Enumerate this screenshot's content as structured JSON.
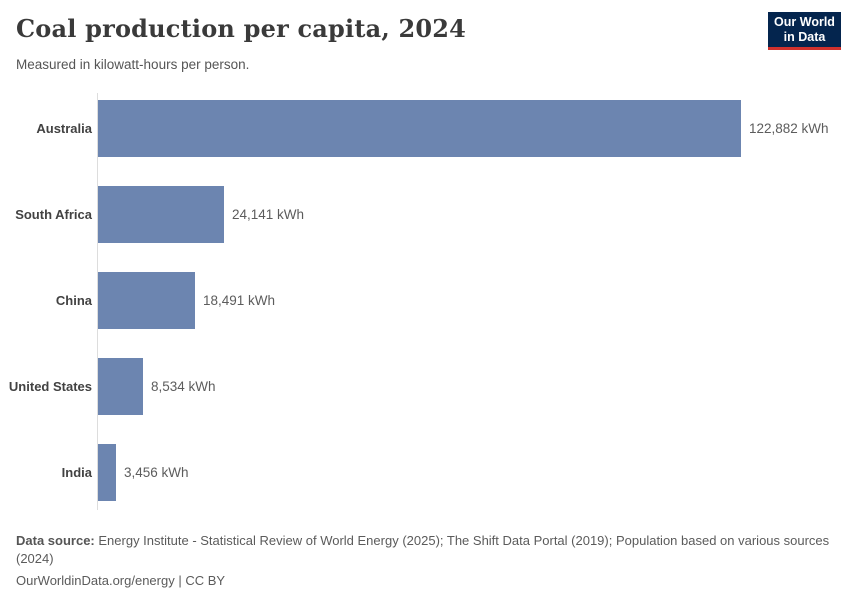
{
  "header": {
    "title": "Coal production per capita, 2024",
    "subtitle": "Measured in kilowatt-hours per person.",
    "logo": {
      "line1": "Our World",
      "line2": "in Data",
      "bg_color": "#04254e",
      "accent_color": "#d0312d"
    }
  },
  "chart_data": {
    "type": "bar",
    "orientation": "horizontal",
    "title": "Coal production per capita, 2024",
    "subtitle": "Measured in kilowatt-hours per person.",
    "unit": "kWh",
    "categories": [
      "Australia",
      "South Africa",
      "China",
      "United States",
      "India"
    ],
    "values": [
      122882,
      24141,
      18491,
      8534,
      3456
    ],
    "value_labels": [
      "122,882 kWh",
      "24,141 kWh",
      "18,491 kWh",
      "8,534 kWh",
      "3,456 kWh"
    ],
    "xlim": [
      0,
      122882
    ],
    "grid": false,
    "legend": "none",
    "bar_color": "#6c85b0",
    "axis_line_color": "#dddddd"
  },
  "footer": {
    "data_source_label": "Data source:",
    "data_source_text": "Energy Institute - Statistical Review of World Energy (2025); The Shift Data Portal (2019); Population based on various sources (2024)",
    "link_text": "OurWorldinData.org/energy | CC BY"
  }
}
